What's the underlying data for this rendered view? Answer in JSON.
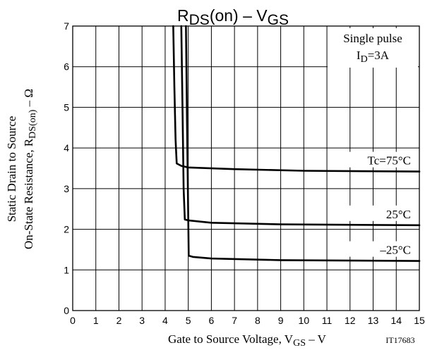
{
  "chart_data": {
    "type": "line",
    "title": {
      "main": "R",
      "main_sub": "DS",
      "main_after": "(on)  –  V",
      "main_sub2": "GS"
    },
    "xlabel": {
      "prefix": "Gate to Source Voltage, V",
      "sub": "GS",
      "suffix": " – V"
    },
    "ylabel": {
      "line1": "Static Drain to Source",
      "line2_prefix": "On-State Resistance, R",
      "line2_sub": "DS(on)",
      "line2_suffix": " – Ω"
    },
    "xlim": [
      0,
      15
    ],
    "ylim": [
      0,
      7
    ],
    "x_ticks": [
      "0",
      "1",
      "2",
      "3",
      "4",
      "5",
      "6",
      "7",
      "8",
      "9",
      "10",
      "11",
      "12",
      "13",
      "14",
      "15"
    ],
    "y_ticks": [
      "0",
      "1",
      "2",
      "3",
      "4",
      "5",
      "6",
      "7"
    ],
    "grid": true,
    "annotations": {
      "condition_line1": "Single pulse",
      "condition_line2_prefix": "I",
      "condition_line2_sub": "D",
      "condition_line2_suffix": "=3A",
      "figure_id": "IT17683"
    },
    "series": [
      {
        "label": "Tc=75°C",
        "points": [
          [
            4.35,
            7.0
          ],
          [
            4.4,
            5.5
          ],
          [
            4.45,
            4.2
          ],
          [
            4.5,
            3.62
          ],
          [
            4.7,
            3.56
          ],
          [
            5.0,
            3.52
          ],
          [
            7,
            3.48
          ],
          [
            10,
            3.44
          ],
          [
            15,
            3.42
          ]
        ]
      },
      {
        "label": "25°C",
        "points": [
          [
            4.7,
            7.0
          ],
          [
            4.75,
            5.0
          ],
          [
            4.8,
            3.0
          ],
          [
            4.85,
            2.24
          ],
          [
            5.0,
            2.22
          ],
          [
            6.0,
            2.16
          ],
          [
            9,
            2.12
          ],
          [
            15,
            2.1
          ]
        ]
      },
      {
        "label": "–25°C",
        "points": [
          [
            4.9,
            7.0
          ],
          [
            4.95,
            4.5
          ],
          [
            5.0,
            2.2
          ],
          [
            5.02,
            1.35
          ],
          [
            5.2,
            1.32
          ],
          [
            6.0,
            1.28
          ],
          [
            9,
            1.24
          ],
          [
            15,
            1.22
          ]
        ]
      }
    ]
  }
}
